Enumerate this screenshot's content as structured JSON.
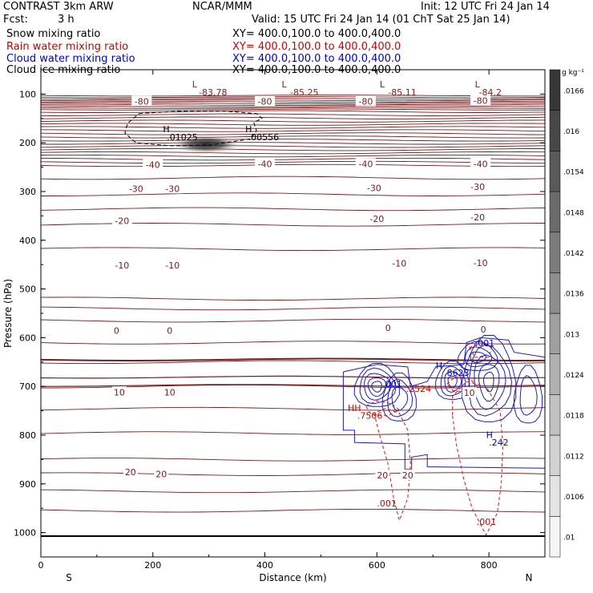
{
  "header": {
    "model": "CONTRAST   3km ARW",
    "center": "NCAR/MMM",
    "init": "Init: 12 UTC Fri 24 Jan 14",
    "fcst_label": "Fcst:",
    "fcst_value": "3 h",
    "valid": "Valid: 15 UTC Fri 24 Jan 14 (01 ChT Sat 25 Jan 14)"
  },
  "fields": [
    {
      "label": "Snow mixing ratio",
      "xy": "XY=  400.0,100.0  to  400.0,400.0",
      "color": "#000000"
    },
    {
      "label": "Rain water mixing ratio",
      "xy": "XY=  400.0,100.0  to  400.0,400.0",
      "color": "#cc0000"
    },
    {
      "label": "Cloud water mixing ratio",
      "xy": "XY=  400.0,100.0  to  400.0,400.0",
      "color": "#0000cc"
    },
    {
      "label": "Cloud ice mixing ratio",
      "xy": "XY=  400.0,100.0  to  400.0,400.0",
      "color": "#000000"
    }
  ],
  "chart_data": {
    "type": "contour",
    "xlabel": "Distance (km)",
    "ylabel": "Pressure (hPa)",
    "xlim": [
      0,
      900
    ],
    "ylim": [
      1050,
      50
    ],
    "x_ticks": [
      0,
      200,
      400,
      600,
      800
    ],
    "y_ticks": [
      100,
      200,
      300,
      400,
      500,
      600,
      700,
      800,
      900,
      1000
    ],
    "x_end_labels": {
      "left": "S",
      "right": "N"
    },
    "colorbar": {
      "unit": "g kg⁻¹",
      "values": [
        ".01",
        ".0106",
        ".0112",
        ".0118",
        ".0124",
        ".013",
        ".0136",
        ".0142",
        ".0148",
        ".0154",
        ".016",
        ".0166"
      ]
    },
    "temperature_labels": [
      {
        "text": "-80",
        "x": 180,
        "p": 115
      },
      {
        "text": "-80",
        "x": 400,
        "p": 115
      },
      {
        "text": "-80",
        "x": 580,
        "p": 115
      },
      {
        "text": "-80",
        "x": 785,
        "p": 113
      },
      {
        "text": "-40",
        "x": 200,
        "p": 245
      },
      {
        "text": "-40",
        "x": 400,
        "p": 243
      },
      {
        "text": "-40",
        "x": 580,
        "p": 243
      },
      {
        "text": "-40",
        "x": 785,
        "p": 243
      },
      {
        "text": "-30",
        "x": 170,
        "p": 294
      },
      {
        "text": "-30",
        "x": 235,
        "p": 294
      },
      {
        "text": "-30",
        "x": 595,
        "p": 293
      },
      {
        "text": "-30",
        "x": 780,
        "p": 290
      },
      {
        "text": "-20",
        "x": 145,
        "p": 360
      },
      {
        "text": "-20",
        "x": 600,
        "p": 356
      },
      {
        "text": "-20",
        "x": 780,
        "p": 353
      },
      {
        "text": "-10",
        "x": 145,
        "p": 451
      },
      {
        "text": "-10",
        "x": 235,
        "p": 451
      },
      {
        "text": "-10",
        "x": 640,
        "p": 447
      },
      {
        "text": "-10",
        "x": 785,
        "p": 446
      },
      {
        "text": "0",
        "x": 135,
        "p": 585
      },
      {
        "text": "0",
        "x": 230,
        "p": 585
      },
      {
        "text": "0",
        "x": 620,
        "p": 580
      },
      {
        "text": "0",
        "x": 790,
        "p": 583
      },
      {
        "text": "10",
        "x": 140,
        "p": 712
      },
      {
        "text": "10",
        "x": 230,
        "p": 712
      },
      {
        "text": "10",
        "x": 765,
        "p": 713
      },
      {
        "text": "20",
        "x": 160,
        "p": 876
      },
      {
        "text": "20",
        "x": 215,
        "p": 880
      },
      {
        "text": "20",
        "x": 610,
        "p": 882
      },
      {
        "text": "20",
        "x": 655,
        "p": 882
      }
    ],
    "extrema_labels": [
      {
        "text": "L",
        "x": 270,
        "p": 80,
        "color": "#8b1a1a"
      },
      {
        "text": "-83.78",
        "x": 282,
        "p": 96,
        "color": "#8b1a1a"
      },
      {
        "text": "L",
        "x": 430,
        "p": 80,
        "color": "#8b1a1a"
      },
      {
        "text": "-85.25",
        "x": 445,
        "p": 96,
        "color": "#8b1a1a"
      },
      {
        "text": "L",
        "x": 605,
        "p": 80,
        "color": "#8b1a1a"
      },
      {
        "text": "-85.11",
        "x": 620,
        "p": 96,
        "color": "#8b1a1a"
      },
      {
        "text": "L",
        "x": 775,
        "p": 80,
        "color": "#8b1a1a"
      },
      {
        "text": "-84.2",
        "x": 782,
        "p": 96,
        "color": "#8b1a1a"
      },
      {
        "text": "H",
        "x": 218,
        "p": 172,
        "color": "#000000"
      },
      {
        "text": ".01025",
        "x": 225,
        "p": 188,
        "color": "#000000"
      },
      {
        "text": "H",
        "x": 365,
        "p": 172,
        "color": "#000000"
      },
      {
        "text": ".00556",
        "x": 370,
        "p": 188,
        "color": "#000000"
      },
      {
        "text": ".001",
        "x": 775,
        "p": 611,
        "color": "#0000cc"
      },
      {
        "text": "H",
        "x": 705,
        "p": 657,
        "color": "#0000cc"
      },
      {
        "text": ".8623",
        "x": 720,
        "p": 672,
        "color": "#0000cc"
      },
      {
        "text": ".001",
        "x": 610,
        "p": 695,
        "color": "#0000cc"
      },
      {
        "text": ".2524",
        "x": 652,
        "p": 705,
        "color": "#cc0000"
      },
      {
        "text": "HH",
        "x": 548,
        "p": 744,
        "color": "#cc0000"
      },
      {
        "text": ".7506",
        "x": 565,
        "p": 760,
        "color": "#cc0000"
      },
      {
        "text": "H",
        "x": 795,
        "p": 799,
        "color": "#0000cc"
      },
      {
        "text": ".242",
        "x": 800,
        "p": 815,
        "color": "#0000cc"
      },
      {
        "text": ".001",
        "x": 600,
        "p": 940,
        "color": "#cc0000"
      },
      {
        "text": ".001",
        "x": 778,
        "p": 978,
        "color": "#cc0000"
      }
    ]
  }
}
